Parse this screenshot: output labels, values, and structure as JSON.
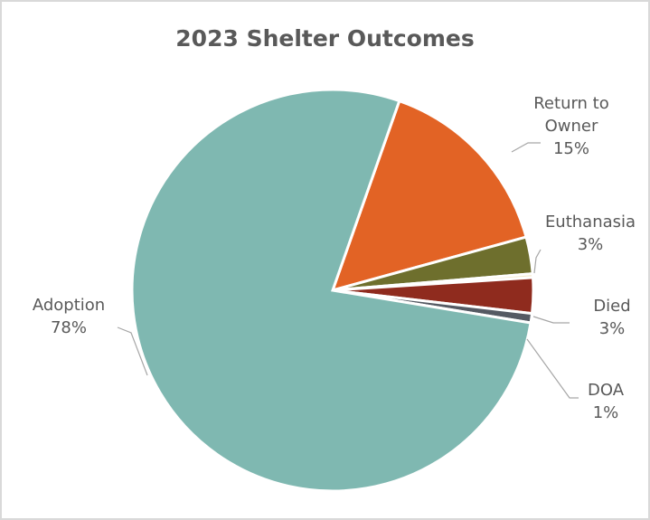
{
  "chart_data": {
    "type": "pie",
    "title": "2023 Shelter Outcomes",
    "slices": [
      {
        "label_lines": [
          "Adoption"
        ],
        "pct_label": "78%",
        "value": 77.6,
        "color": "#7fb8b1"
      },
      {
        "label_lines": [
          "Return to",
          "Owner"
        ],
        "pct_label": "15%",
        "value": 15.3,
        "color": "#e26325"
      },
      {
        "label_lines": [
          "Euthanasia"
        ],
        "pct_label": "3%",
        "value": 2.95,
        "color": "#6e6f2d"
      },
      {
        "label_lines": [
          ""
        ],
        "pct_label": "",
        "value": 0.3,
        "color": "#f3e7c8"
      },
      {
        "label_lines": [
          "Died"
        ],
        "pct_label": "3%",
        "value": 2.85,
        "color": "#8f2b1e"
      },
      {
        "label_lines": [
          "DOA"
        ],
        "pct_label": "1%",
        "value": 0.75,
        "color": "#555a63"
      }
    ],
    "legend": "none"
  }
}
